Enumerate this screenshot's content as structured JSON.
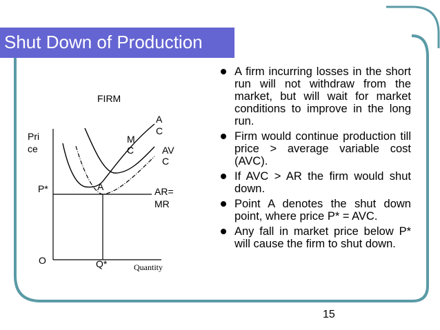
{
  "slide": {
    "title": "Shut Down of Production",
    "page_number": "15",
    "colors": {
      "title_bar": "#6464d2",
      "frame_stroke": "#5a9aa6"
    }
  },
  "bullets": [
    "A firm incurring losses in the short run will not withdraw from the market, but will wait for market conditions to improve in the long run.",
    "Firm would continue production till price > average variable cost (AVC).",
    "If AVC > AR the firm would shut down.",
    "Point A denotes the shut down point, where price P* = AVC.",
    "Any fall in market price below P* will cause the firm to shut down."
  ],
  "diagram": {
    "heading": "FIRM",
    "y_axis_label_line1": "Pri",
    "y_axis_label_line2": "ce",
    "x_axis_label": "Quantity",
    "origin_label": "O",
    "price_label": "P*",
    "quantity_label": "Q*",
    "point_label": "A",
    "ac_label_line1": "A",
    "ac_label_line2": "C",
    "mc_label_line1": "M",
    "mc_label_line2": "C",
    "avc_label_line1": "AV",
    "avc_label_line2": "C",
    "ar_label_line1": "AR=",
    "ar_label_line2": "MR"
  }
}
